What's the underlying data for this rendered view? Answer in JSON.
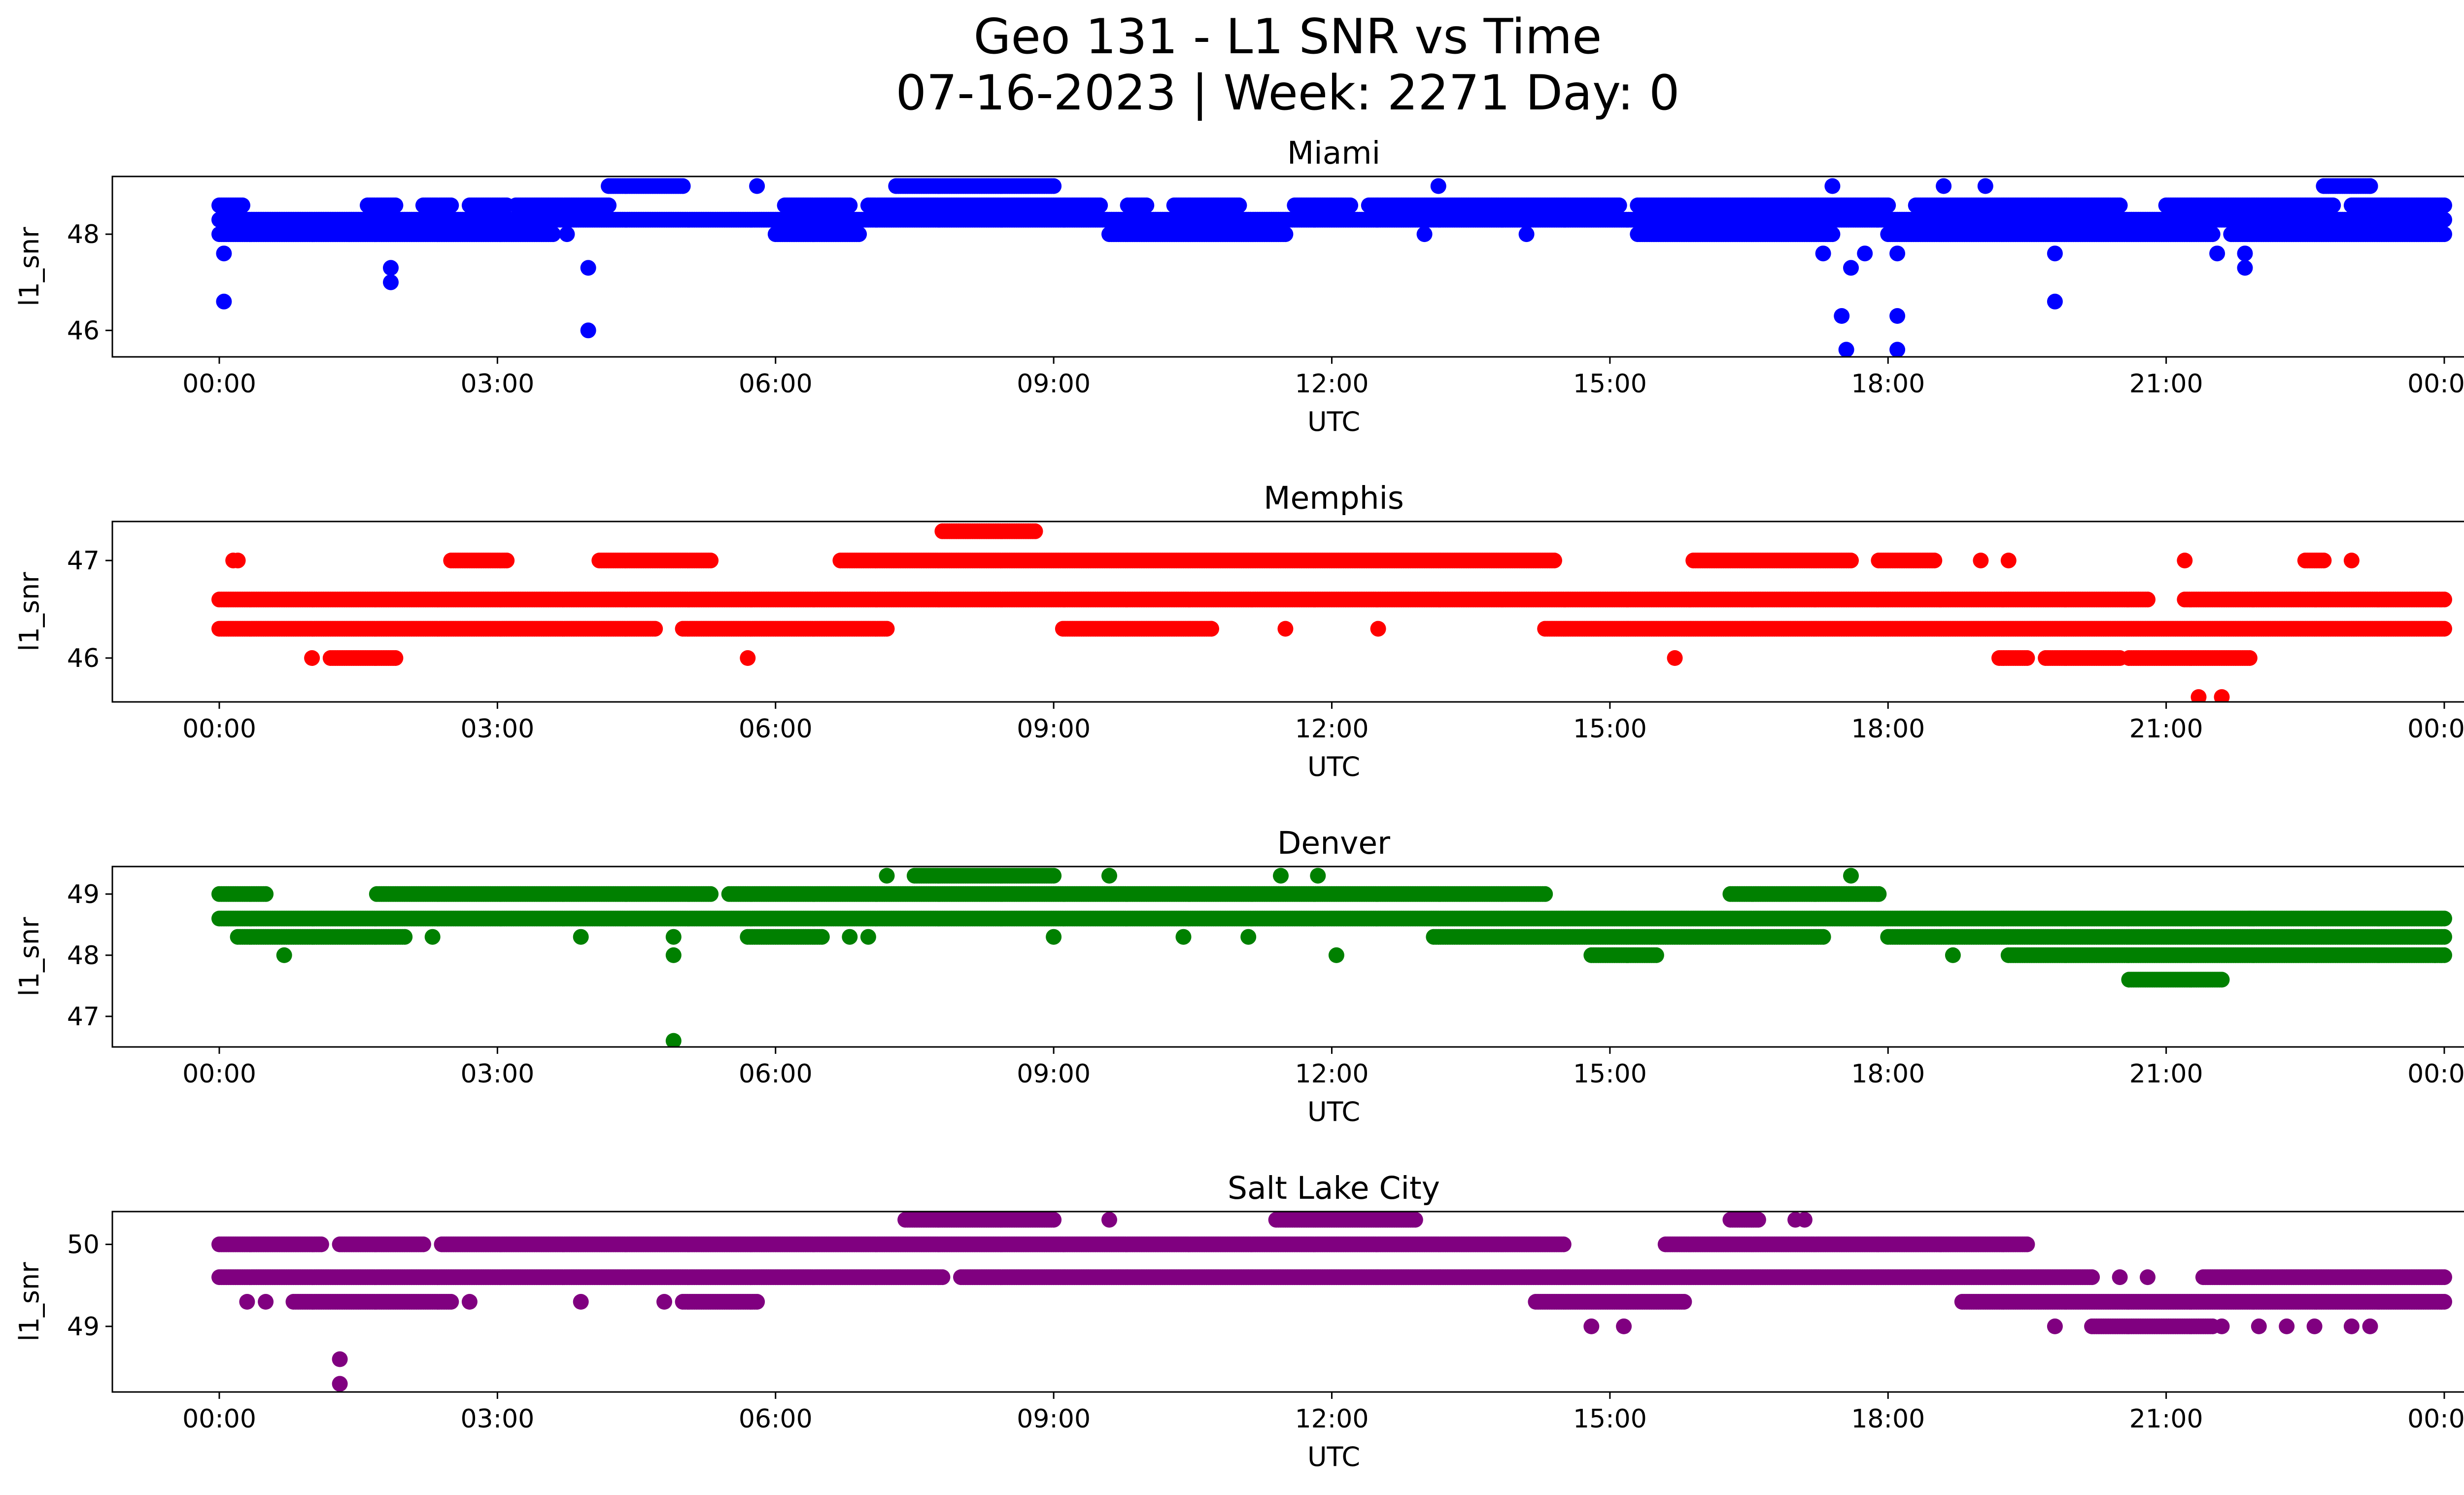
{
  "figure": {
    "title_line1": "Geo 131 - L1 SNR vs Time",
    "title_line2": "07-16-2023 | Week: 2271 Day: 0"
  },
  "chart_data": [
    {
      "type": "scatter",
      "title": "Miami",
      "xlabel": "UTC",
      "ylabel": "l1_snr",
      "color": "#0000ff",
      "x_unit": "hours UTC",
      "x_ticks": [
        "00:00",
        "03:00",
        "06:00",
        "09:00",
        "12:00",
        "15:00",
        "18:00",
        "21:00",
        "00:00"
      ],
      "xlim": [
        "2023-07-16 00:00",
        "2023-07-17 00:00"
      ],
      "y_ticks": [
        46,
        48
      ],
      "ylim": [
        45.45,
        49.2
      ],
      "band_levels": [
        {
          "y": 48.6,
          "segments": [
            [
              0,
              0.25
            ],
            [
              1.6,
              1.9
            ],
            [
              2.2,
              2.5
            ],
            [
              2.7,
              3.1
            ],
            [
              3.2,
              4.2
            ],
            [
              6.1,
              6.8
            ],
            [
              7.0,
              9.5
            ],
            [
              9.8,
              10.0
            ],
            [
              10.3,
              11.0
            ],
            [
              11.6,
              12.2
            ],
            [
              12.4,
              15.1
            ],
            [
              15.3,
              18.0
            ],
            [
              18.3,
              20.5
            ],
            [
              21.0,
              22.8
            ],
            [
              23.0,
              24.0
            ]
          ]
        },
        {
          "y": 48.3,
          "segments": [
            [
              0,
              24.0
            ]
          ]
        },
        {
          "y": 48.0,
          "segments": [
            [
              0,
              3.6
            ],
            [
              6.0,
              6.9
            ],
            [
              9.6,
              11.5
            ],
            [
              15.3,
              17.4
            ],
            [
              18.0,
              21.5
            ],
            [
              21.7,
              24.0
            ]
          ]
        },
        {
          "y": 49.0,
          "segments": [
            [
              4.2,
              5.0
            ],
            [
              7.3,
              9.0
            ],
            [
              22.7,
              23.2
            ]
          ]
        }
      ],
      "points": [
        {
          "t": 0.05,
          "v": 46.6
        },
        {
          "t": 0.05,
          "v": 47.6
        },
        {
          "t": 1.4,
          "v": 48.0
        },
        {
          "t": 1.85,
          "v": 47.3
        },
        {
          "t": 1.85,
          "v": 47.0
        },
        {
          "t": 3.75,
          "v": 48.0
        },
        {
          "t": 3.98,
          "v": 47.3
        },
        {
          "t": 3.98,
          "v": 46.0
        },
        {
          "t": 5.8,
          "v": 49.0
        },
        {
          "t": 13.15,
          "v": 49.0
        },
        {
          "t": 13.0,
          "v": 48.0
        },
        {
          "t": 14.1,
          "v": 48.0
        },
        {
          "t": 17.3,
          "v": 47.6
        },
        {
          "t": 17.5,
          "v": 46.3
        },
        {
          "t": 17.55,
          "v": 45.6
        },
        {
          "t": 17.6,
          "v": 47.3
        },
        {
          "t": 17.75,
          "v": 47.6
        },
        {
          "t": 18.1,
          "v": 46.3
        },
        {
          "t": 18.1,
          "v": 45.6
        },
        {
          "t": 18.1,
          "v": 47.6
        },
        {
          "t": 19.8,
          "v": 46.6
        },
        {
          "t": 19.8,
          "v": 47.6
        },
        {
          "t": 21.55,
          "v": 47.6
        },
        {
          "t": 21.85,
          "v": 47.3
        },
        {
          "t": 21.85,
          "v": 47.6
        },
        {
          "t": 17.4,
          "v": 49.0
        },
        {
          "t": 18.6,
          "v": 49.0
        },
        {
          "t": 19.05,
          "v": 49.0
        },
        {
          "t": 23.2,
          "v": 49.0
        }
      ]
    },
    {
      "type": "scatter",
      "title": "Memphis",
      "xlabel": "UTC",
      "ylabel": "l1_snr",
      "color": "#ff0000",
      "x_unit": "hours UTC",
      "x_ticks": [
        "00:00",
        "03:00",
        "06:00",
        "09:00",
        "12:00",
        "15:00",
        "18:00",
        "21:00",
        "00:00"
      ],
      "xlim": [
        "2023-07-16 00:00",
        "2023-07-17 00:00"
      ],
      "y_ticks": [
        46,
        47
      ],
      "ylim": [
        45.55,
        47.4
      ],
      "band_levels": [
        {
          "y": 46.6,
          "segments": [
            [
              0,
              20.8
            ],
            [
              21.2,
              24.0
            ]
          ]
        },
        {
          "y": 46.3,
          "segments": [
            [
              0,
              4.7
            ],
            [
              5.0,
              7.2
            ],
            [
              9.1,
              10.7
            ],
            [
              14.3,
              24.0
            ]
          ]
        },
        {
          "y": 47.0,
          "segments": [
            [
              2.5,
              3.1
            ],
            [
              4.1,
              5.3
            ],
            [
              6.7,
              14.4
            ],
            [
              15.9,
              17.6
            ],
            [
              17.9,
              18.5
            ],
            [
              22.5,
              22.7
            ]
          ]
        },
        {
          "y": 46.0,
          "segments": [
            [
              1.2,
              1.9
            ],
            [
              19.2,
              19.5
            ],
            [
              19.7,
              20.5
            ],
            [
              20.6,
              21.9
            ]
          ]
        },
        {
          "y": 47.3,
          "segments": [
            [
              7.8,
              8.8
            ]
          ]
        }
      ],
      "points": [
        {
          "t": 0.15,
          "v": 47.0
        },
        {
          "t": 0.2,
          "v": 47.0
        },
        {
          "t": 1.0,
          "v": 46.0
        },
        {
          "t": 5.7,
          "v": 46.0
        },
        {
          "t": 15.7,
          "v": 46.0
        },
        {
          "t": 19.0,
          "v": 47.0
        },
        {
          "t": 19.3,
          "v": 47.0
        },
        {
          "t": 21.2,
          "v": 47.0
        },
        {
          "t": 21.35,
          "v": 45.6
        },
        {
          "t": 21.6,
          "v": 45.6
        },
        {
          "t": 23.0,
          "v": 47.0
        },
        {
          "t": 12.5,
          "v": 46.3
        },
        {
          "t": 11.5,
          "v": 46.3
        },
        {
          "t": 10.7,
          "v": 46.3
        }
      ]
    },
    {
      "type": "scatter",
      "title": "Denver",
      "xlabel": "UTC",
      "ylabel": "l1_snr",
      "color": "#008000",
      "x_unit": "hours UTC",
      "x_ticks": [
        "00:00",
        "03:00",
        "06:00",
        "09:00",
        "12:00",
        "15:00",
        "18:00",
        "21:00",
        "00:00"
      ],
      "xlim": [
        "2023-07-16 00:00",
        "2023-07-17 00:00"
      ],
      "y_ticks": [
        47,
        48,
        49
      ],
      "ylim": [
        46.5,
        49.45
      ],
      "band_levels": [
        {
          "y": 48.6,
          "segments": [
            [
              0,
              24.0
            ]
          ]
        },
        {
          "y": 49.0,
          "segments": [
            [
              0,
              0.5
            ],
            [
              1.7,
              5.3
            ],
            [
              5.5,
              14.3
            ],
            [
              16.3,
              17.9
            ]
          ]
        },
        {
          "y": 48.3,
          "segments": [
            [
              0.2,
              2.0
            ],
            [
              5.7,
              6.5
            ],
            [
              13.1,
              17.3
            ],
            [
              18.0,
              24.0
            ]
          ]
        },
        {
          "y": 48.0,
          "segments": [
            [
              14.8,
              15.5
            ],
            [
              19.3,
              24.0
            ]
          ]
        },
        {
          "y": 49.3,
          "segments": [
            [
              7.5,
              9.0
            ]
          ]
        },
        {
          "y": 47.6,
          "segments": [
            [
              20.6,
              21.6
            ]
          ]
        }
      ],
      "points": [
        {
          "t": 0.7,
          "v": 48.0
        },
        {
          "t": 2.3,
          "v": 48.3
        },
        {
          "t": 3.9,
          "v": 48.3
        },
        {
          "t": 4.9,
          "v": 48.0
        },
        {
          "t": 4.9,
          "v": 48.3
        },
        {
          "t": 4.9,
          "v": 46.6
        },
        {
          "t": 7.2,
          "v": 49.3
        },
        {
          "t": 9.6,
          "v": 49.3
        },
        {
          "t": 11.45,
          "v": 49.3
        },
        {
          "t": 11.85,
          "v": 49.3
        },
        {
          "t": 12.05,
          "v": 48.0
        },
        {
          "t": 17.6,
          "v": 49.3
        },
        {
          "t": 18.7,
          "v": 48.0
        },
        {
          "t": 21.9,
          "v": 48.6
        },
        {
          "t": 23.9,
          "v": 48.0
        },
        {
          "t": 9.0,
          "v": 48.3
        },
        {
          "t": 10.4,
          "v": 48.3
        },
        {
          "t": 11.1,
          "v": 48.3
        },
        {
          "t": 7.0,
          "v": 48.3
        },
        {
          "t": 6.8,
          "v": 48.3
        }
      ]
    },
    {
      "type": "scatter",
      "title": "Salt Lake City",
      "xlabel": "UTC",
      "ylabel": "l1_snr",
      "color": "#800080",
      "x_unit": "hours UTC",
      "x_ticks": [
        "00:00",
        "03:00",
        "06:00",
        "09:00",
        "12:00",
        "15:00",
        "18:00",
        "21:00",
        "00:00"
      ],
      "xlim": [
        "2023-07-16 00:00",
        "2023-07-17 00:00"
      ],
      "y_ticks": [
        49,
        50
      ],
      "ylim": [
        48.2,
        50.4
      ],
      "band_levels": [
        {
          "y": 49.6,
          "segments": [
            [
              0,
              7.8
            ],
            [
              8.0,
              20.2
            ],
            [
              21.4,
              24.0
            ]
          ]
        },
        {
          "y": 50.0,
          "segments": [
            [
              0,
              1.1
            ],
            [
              1.3,
              2.2
            ],
            [
              2.4,
              14.5
            ],
            [
              15.6,
              19.5
            ]
          ]
        },
        {
          "y": 49.3,
          "segments": [
            [
              0.8,
              2.5
            ],
            [
              5.0,
              5.8
            ],
            [
              14.2,
              15.8
            ],
            [
              18.8,
              24.0
            ]
          ]
        },
        {
          "y": 50.3,
          "segments": [
            [
              7.4,
              9.0
            ],
            [
              11.4,
              12.9
            ],
            [
              16.3,
              16.6
            ]
          ]
        },
        {
          "y": 49.0,
          "segments": [
            [
              20.2,
              21.5
            ]
          ]
        }
      ],
      "points": [
        {
          "t": 0.3,
          "v": 49.3
        },
        {
          "t": 0.5,
          "v": 49.3
        },
        {
          "t": 1.3,
          "v": 48.6
        },
        {
          "t": 1.3,
          "v": 48.3
        },
        {
          "t": 2.7,
          "v": 49.3
        },
        {
          "t": 3.9,
          "v": 49.3
        },
        {
          "t": 4.8,
          "v": 49.3
        },
        {
          "t": 9.6,
          "v": 50.3
        },
        {
          "t": 14.8,
          "v": 49.0
        },
        {
          "t": 15.15,
          "v": 49.0
        },
        {
          "t": 17.0,
          "v": 50.3
        },
        {
          "t": 17.1,
          "v": 50.3
        },
        {
          "t": 19.8,
          "v": 49.0
        },
        {
          "t": 20.5,
          "v": 49.6
        },
        {
          "t": 21.6,
          "v": 49.0
        },
        {
          "t": 22.0,
          "v": 49.0
        },
        {
          "t": 22.3,
          "v": 49.0
        },
        {
          "t": 22.6,
          "v": 49.0
        },
        {
          "t": 23.0,
          "v": 49.0
        },
        {
          "t": 23.2,
          "v": 49.0
        },
        {
          "t": 20.8,
          "v": 49.6
        }
      ]
    }
  ]
}
